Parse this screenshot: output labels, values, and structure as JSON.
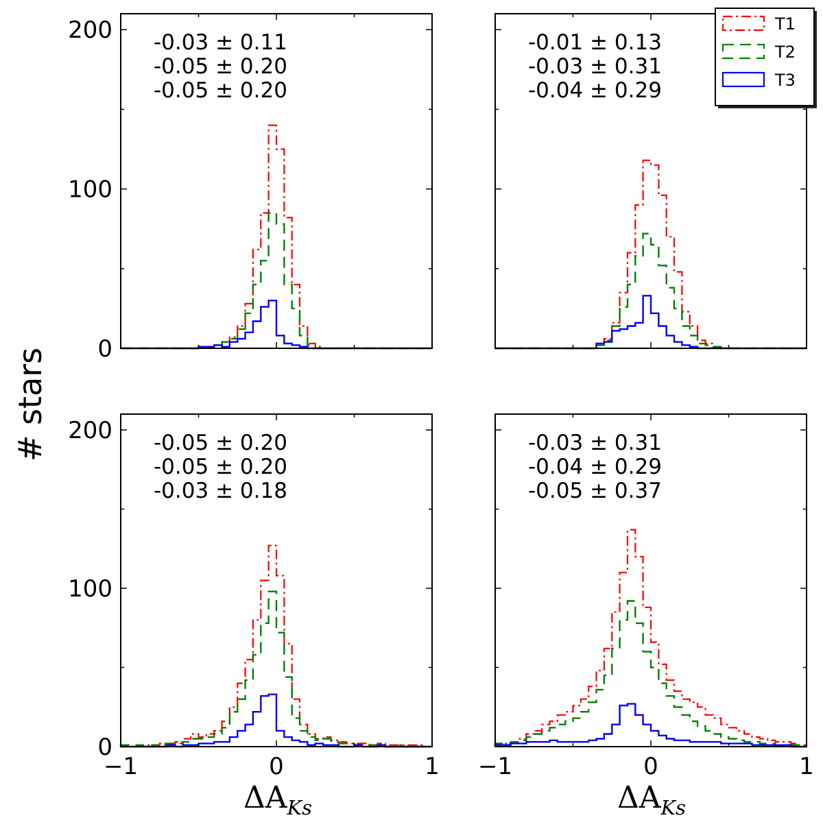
{
  "chart_data": {
    "type": "histogram",
    "ylabel": "# stars",
    "xlabel": "ΔA",
    "xlabel_subscript": "Ks",
    "xlim": [
      -1,
      1
    ],
    "ylim": [
      0,
      210
    ],
    "xticks": [
      -1,
      0,
      1
    ],
    "xtick_labels": [
      "−1",
      "0",
      "1"
    ],
    "yticks": [
      0,
      100,
      200
    ],
    "ytick_labels": [
      "0",
      "100",
      "200"
    ],
    "bin_edges": [
      -1.0,
      -0.95,
      -0.9,
      -0.85,
      -0.8,
      -0.75,
      -0.7,
      -0.65,
      -0.6,
      -0.55,
      -0.5,
      -0.45,
      -0.4,
      -0.35,
      -0.3,
      -0.25,
      -0.2,
      -0.15,
      -0.1,
      -0.05,
      0.0,
      0.05,
      0.1,
      0.15,
      0.2,
      0.25,
      0.3,
      0.35,
      0.4,
      0.45,
      0.5,
      0.55,
      0.6,
      0.65,
      0.7,
      0.75,
      0.8,
      0.85,
      0.9,
      0.95,
      1.0
    ],
    "legend": {
      "position": "top-right",
      "entries": [
        {
          "label": "T1",
          "color": "#ff0000",
          "style": "dashdot"
        },
        {
          "label": "T2",
          "color": "#008000",
          "style": "dashed"
        },
        {
          "label": "T3",
          "color": "#0000ff",
          "style": "solid"
        }
      ]
    },
    "panels": [
      {
        "position": "top-left",
        "stats": [
          "-0.03 ± 0.11",
          "-0.05 ± 0.20",
          "-0.05 ± 0.20"
        ],
        "series": [
          {
            "name": "T1",
            "values": [
              0,
              0,
              0,
              0,
              0,
              0,
              0,
              0,
              0,
              0,
              1,
              1,
              2,
              4,
              7,
              14,
              28,
              62,
              85,
              140,
              125,
              82,
              40,
              14,
              3,
              1,
              0,
              0,
              0,
              0,
              0,
              0,
              0,
              0,
              0,
              0,
              0,
              0,
              0,
              0
            ]
          },
          {
            "name": "T2",
            "values": [
              0,
              0,
              0,
              0,
              0,
              0,
              0,
              0,
              0,
              0,
              1,
              1,
              2,
              4,
              6,
              12,
              22,
              40,
              55,
              85,
              78,
              40,
              25,
              8,
              2,
              0,
              0,
              0,
              0,
              0,
              0,
              0,
              0,
              0,
              0,
              0,
              0,
              0,
              0,
              0
            ]
          },
          {
            "name": "T3",
            "values": [
              0,
              0,
              0,
              0,
              0,
              0,
              0,
              0,
              0,
              0,
              1,
              1,
              2,
              1,
              4,
              6,
              10,
              17,
              26,
              30,
              8,
              3,
              2,
              1,
              0,
              0,
              0,
              0,
              0,
              0,
              0,
              0,
              0,
              0,
              0,
              0,
              0,
              0,
              0,
              0
            ]
          }
        ]
      },
      {
        "position": "top-right",
        "stats": [
          "-0.01 ± 0.13",
          "-0.03 ± 0.31",
          "-0.04 ± 0.29"
        ],
        "series": [
          {
            "name": "T1",
            "values": [
              0,
              0,
              0,
              0,
              0,
              0,
              0,
              0,
              0,
              0,
              0,
              0,
              0,
              2,
              6,
              16,
              35,
              60,
              90,
              118,
              115,
              96,
              70,
              48,
              23,
              14,
              5,
              3,
              1,
              0,
              0,
              0,
              0,
              0,
              0,
              0,
              0,
              0,
              0,
              0
            ]
          },
          {
            "name": "T2",
            "values": [
              0,
              0,
              0,
              0,
              0,
              0,
              0,
              0,
              0,
              0,
              0,
              0,
              0,
              2,
              5,
              14,
              26,
              40,
              58,
              72,
              65,
              52,
              38,
              25,
              14,
              8,
              3,
              2,
              1,
              0,
              0,
              0,
              0,
              0,
              0,
              0,
              0,
              0,
              0,
              0
            ]
          },
          {
            "name": "T3",
            "values": [
              0,
              0,
              0,
              0,
              0,
              0,
              0,
              0,
              0,
              0,
              0,
              0,
              0,
              3,
              4,
              11,
              12,
              14,
              16,
              33,
              22,
              14,
              8,
              4,
              2,
              1,
              0,
              0,
              0,
              0,
              0,
              0,
              0,
              0,
              0,
              0,
              0,
              0,
              0,
              0
            ]
          }
        ]
      },
      {
        "position": "bottom-left",
        "stats": [
          "-0.05 ± 0.20",
          "-0.05 ± 0.20",
          "-0.03 ± 0.18"
        ],
        "series": [
          {
            "name": "T1",
            "values": [
              1,
              0,
              1,
              1,
              1,
              2,
              2,
              3,
              5,
              8,
              6,
              8,
              10,
              16,
              25,
              40,
              55,
              80,
              105,
              127,
              108,
              65,
              30,
              14,
              8,
              5,
              6,
              4,
              3,
              2,
              2,
              2,
              1,
              2,
              1,
              1,
              1,
              1,
              1,
              0
            ]
          },
          {
            "name": "T2",
            "values": [
              1,
              0,
              1,
              0,
              1,
              1,
              2,
              2,
              3,
              5,
              5,
              6,
              8,
              12,
              22,
              30,
              42,
              58,
              78,
              98,
              72,
              44,
              18,
              10,
              6,
              4,
              5,
              3,
              2,
              2,
              1,
              1,
              1,
              1,
              0,
              1,
              0,
              0,
              0,
              0
            ]
          },
          {
            "name": "T3",
            "values": [
              0,
              0,
              0,
              0,
              0,
              0,
              1,
              0,
              1,
              1,
              2,
              2,
              3,
              3,
              6,
              10,
              14,
              22,
              32,
              33,
              10,
              6,
              4,
              3,
              1,
              2,
              1,
              1,
              0,
              0,
              1,
              0,
              0,
              1,
              0,
              0,
              0,
              0,
              0,
              0
            ]
          }
        ]
      },
      {
        "position": "bottom-right",
        "stats": [
          "-0.03 ± 0.31",
          "-0.04 ± 0.29",
          "-0.05 ± 0.37"
        ],
        "series": [
          {
            "name": "T1",
            "values": [
              2,
              2,
              3,
              5,
              8,
              10,
              14,
              16,
              20,
              22,
              26,
              30,
              38,
              48,
              62,
              85,
              110,
              137,
              120,
              88,
              66,
              52,
              42,
              35,
              30,
              28,
              25,
              20,
              18,
              14,
              12,
              10,
              8,
              6,
              5,
              4,
              3,
              3,
              2,
              1
            ]
          },
          {
            "name": "T2",
            "values": [
              2,
              2,
              3,
              4,
              6,
              8,
              10,
              12,
              14,
              16,
              18,
              22,
              28,
              36,
              45,
              62,
              80,
              92,
              78,
              60,
              50,
              40,
              32,
              25,
              20,
              16,
              13,
              10,
              8,
              6,
              5,
              4,
              3,
              3,
              2,
              2,
              1,
              1,
              1,
              0
            ]
          },
          {
            "name": "T3",
            "values": [
              1,
              1,
              2,
              2,
              3,
              3,
              3,
              4,
              3,
              3,
              3,
              3,
              4,
              5,
              8,
              14,
              26,
              27,
              20,
              14,
              10,
              7,
              5,
              4,
              4,
              3,
              3,
              3,
              3,
              2,
              2,
              2,
              2,
              1,
              1,
              1,
              1,
              1,
              0,
              0
            ]
          }
        ]
      }
    ]
  },
  "style": {
    "t1_color": "#ff0000",
    "t2_color": "#008000",
    "t3_color": "#0000ff"
  }
}
